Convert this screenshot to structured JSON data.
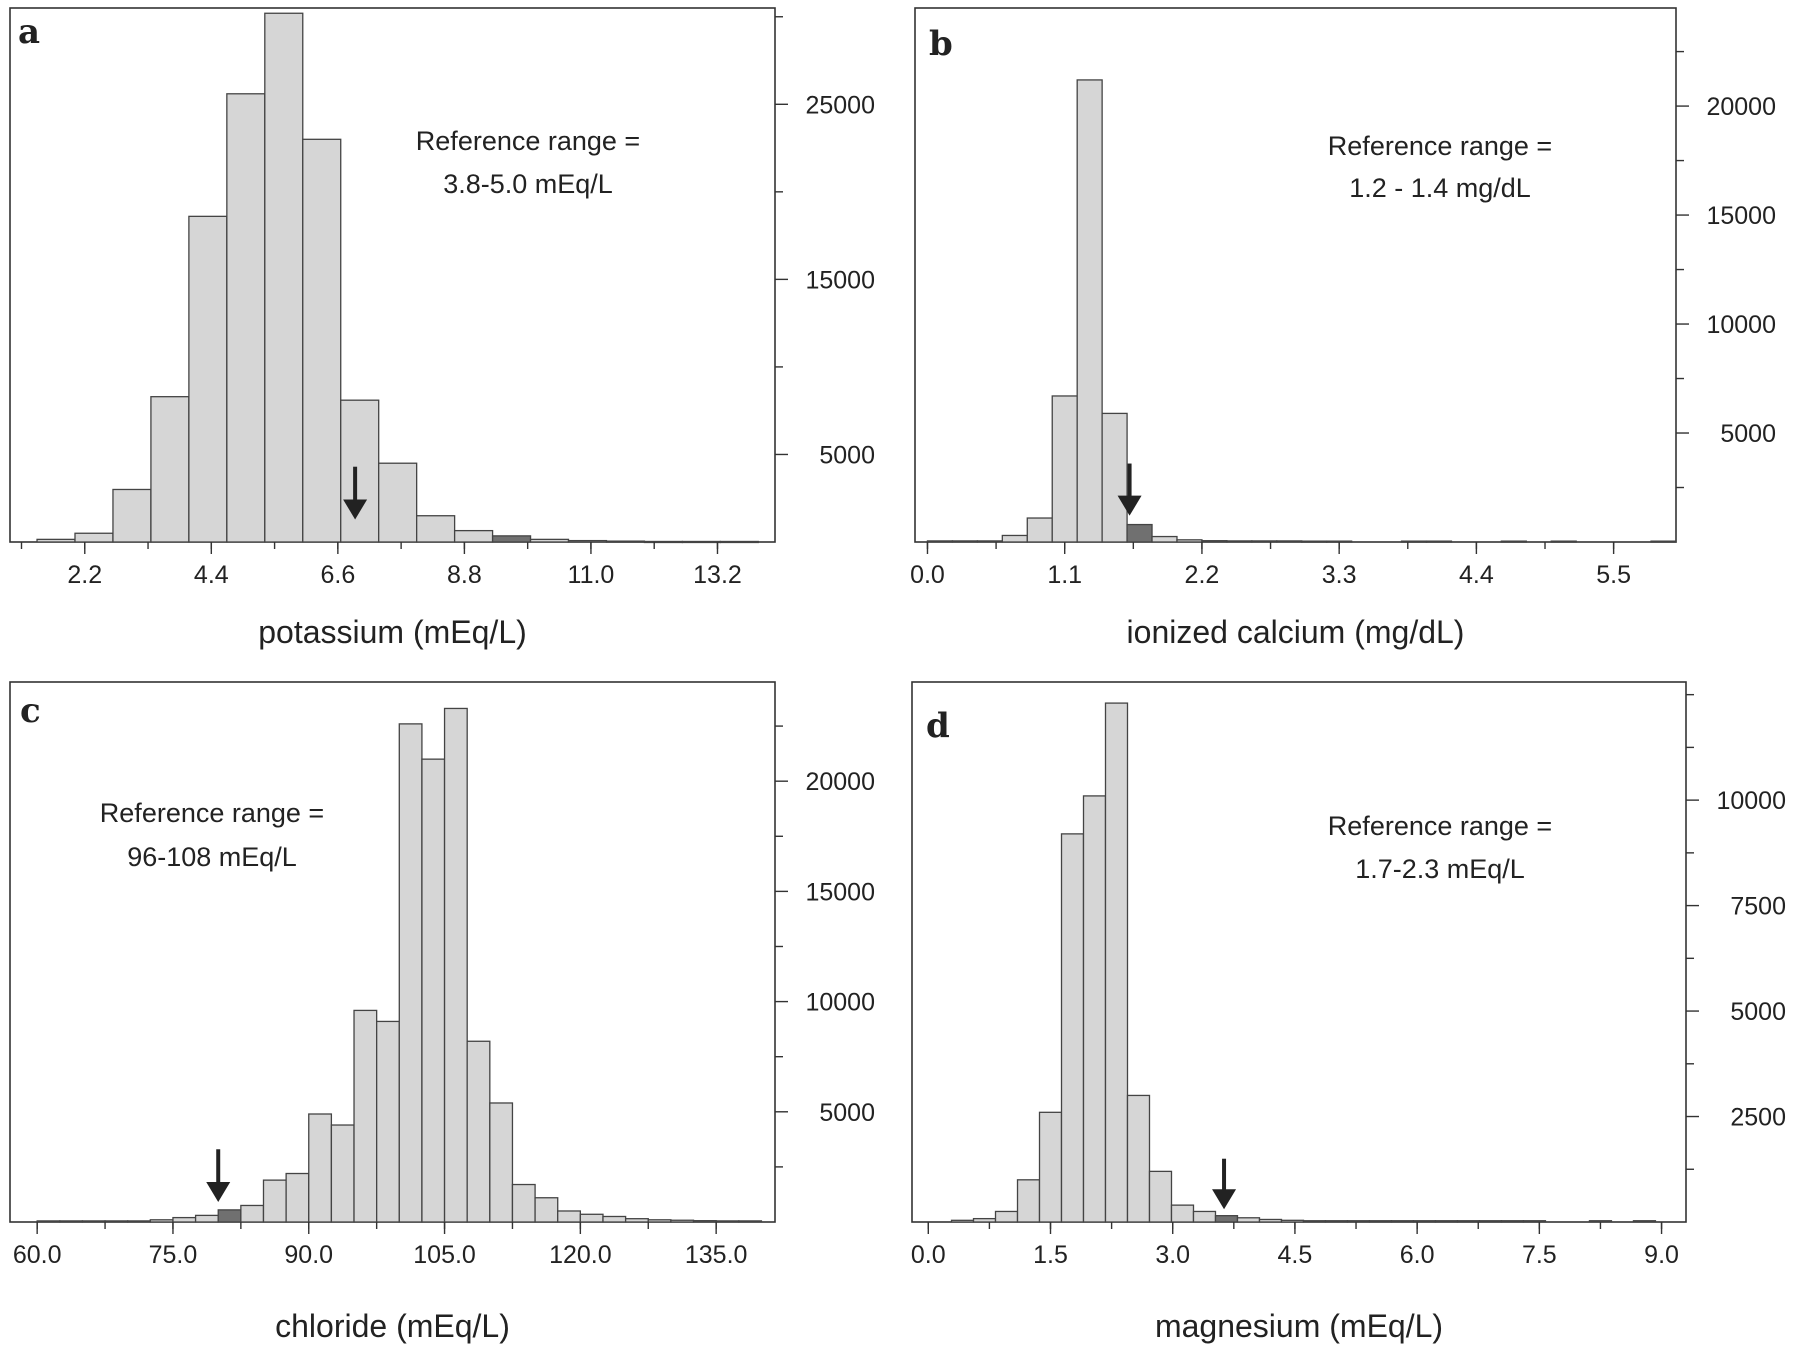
{
  "chart_data": [
    {
      "type": "bar",
      "panel": "a",
      "xlabel": "potassium (mEq/L)",
      "x_ticks": [
        "2.2",
        "4.4",
        "6.6",
        "8.8",
        "11.0",
        "13.2"
      ],
      "y_ticks": [
        "5000",
        "15000",
        "25000"
      ],
      "annotation": [
        "Reference range =",
        "3.8-5.0 mEq/L"
      ],
      "xlim": [
        0.9,
        14.2
      ],
      "ylim": [
        0,
        30500
      ],
      "bin_width": 0.66,
      "bins": [
        {
          "x": 1.7,
          "value": 150
        },
        {
          "x": 2.36,
          "value": 500
        },
        {
          "x": 3.02,
          "value": 3000
        },
        {
          "x": 3.68,
          "value": 8300
        },
        {
          "x": 4.34,
          "value": 18600
        },
        {
          "x": 5.0,
          "value": 25600
        },
        {
          "x": 5.66,
          "value": 30200
        },
        {
          "x": 6.32,
          "value": 23000
        },
        {
          "x": 6.98,
          "value": 8100
        },
        {
          "x": 7.64,
          "value": 4500
        },
        {
          "x": 8.3,
          "value": 1500
        },
        {
          "x": 8.96,
          "value": 650
        },
        {
          "x": 9.62,
          "value": 350,
          "highlight": true
        },
        {
          "x": 10.28,
          "value": 150
        },
        {
          "x": 10.94,
          "value": 80
        },
        {
          "x": 11.6,
          "value": 50
        },
        {
          "x": 12.26,
          "value": 30
        },
        {
          "x": 12.92,
          "value": 30
        },
        {
          "x": 13.58,
          "value": 30
        }
      ],
      "arrow_x": 6.9,
      "arrow_y_top": 4300,
      "arrow_y_bottom": 1400
    },
    {
      "type": "bar",
      "panel": "b",
      "xlabel": "ionized calcium (mg/dL)",
      "x_ticks": [
        "0.0",
        "1.1",
        "2.2",
        "3.3",
        "4.4",
        "5.5"
      ],
      "y_ticks": [
        "5000",
        "10000",
        "15000",
        "20000"
      ],
      "annotation": [
        "Reference range =",
        "1.2 - 1.4 mg/dL"
      ],
      "xlim": [
        -0.1,
        6.0
      ],
      "ylim": [
        0,
        24500
      ],
      "bin_width": 0.2,
      "bins": [
        {
          "x": 0.1,
          "value": 50
        },
        {
          "x": 0.3,
          "value": 50
        },
        {
          "x": 0.5,
          "value": 50
        },
        {
          "x": 0.7,
          "value": 300
        },
        {
          "x": 0.9,
          "value": 1100
        },
        {
          "x": 1.1,
          "value": 6700
        },
        {
          "x": 1.3,
          "value": 21200
        },
        {
          "x": 1.5,
          "value": 5900
        },
        {
          "x": 1.7,
          "value": 800,
          "highlight": true
        },
        {
          "x": 1.9,
          "value": 250
        },
        {
          "x": 2.1,
          "value": 100
        },
        {
          "x": 2.3,
          "value": 60
        },
        {
          "x": 2.5,
          "value": 50
        },
        {
          "x": 2.7,
          "value": 50
        },
        {
          "x": 2.9,
          "value": 50
        },
        {
          "x": 3.1,
          "value": 40
        },
        {
          "x": 3.3,
          "value": 40
        },
        {
          "x": 3.9,
          "value": 40
        },
        {
          "x": 4.1,
          "value": 40
        },
        {
          "x": 4.7,
          "value": 40
        },
        {
          "x": 5.1,
          "value": 40
        },
        {
          "x": 5.9,
          "value": 40
        }
      ],
      "arrow_x": 1.62,
      "arrow_y_top": 3600,
      "arrow_y_bottom": 1300
    },
    {
      "type": "bar",
      "panel": "c",
      "xlabel": "chloride (mEq/L)",
      "x_ticks": [
        "60.0",
        "75.0",
        "90.0",
        "105.0",
        "120.0",
        "135.0"
      ],
      "y_ticks": [
        "5000",
        "10000",
        "15000",
        "20000"
      ],
      "annotation": [
        "Reference range =",
        "96-108 mEq/L"
      ],
      "xlim": [
        57.0,
        141.5
      ],
      "ylim": [
        0,
        24500
      ],
      "bin_width": 2.5,
      "bins": [
        {
          "x": 61.25,
          "value": 50
        },
        {
          "x": 63.75,
          "value": 50
        },
        {
          "x": 66.25,
          "value": 50
        },
        {
          "x": 68.75,
          "value": 50
        },
        {
          "x": 71.25,
          "value": 50
        },
        {
          "x": 73.75,
          "value": 100
        },
        {
          "x": 76.25,
          "value": 200
        },
        {
          "x": 78.75,
          "value": 300
        },
        {
          "x": 81.25,
          "value": 550,
          "highlight": true
        },
        {
          "x": 83.75,
          "value": 750
        },
        {
          "x": 86.25,
          "value": 1900
        },
        {
          "x": 88.75,
          "value": 2200
        },
        {
          "x": 91.25,
          "value": 4900
        },
        {
          "x": 93.75,
          "value": 4400
        },
        {
          "x": 96.25,
          "value": 9600
        },
        {
          "x": 98.75,
          "value": 9100
        },
        {
          "x": 101.25,
          "value": 22600
        },
        {
          "x": 103.75,
          "value": 21000
        },
        {
          "x": 106.25,
          "value": 23300
        },
        {
          "x": 108.75,
          "value": 8200
        },
        {
          "x": 111.25,
          "value": 5400
        },
        {
          "x": 113.75,
          "value": 1700
        },
        {
          "x": 116.25,
          "value": 1100
        },
        {
          "x": 118.75,
          "value": 500
        },
        {
          "x": 121.25,
          "value": 350
        },
        {
          "x": 123.75,
          "value": 250
        },
        {
          "x": 126.25,
          "value": 150
        },
        {
          "x": 128.75,
          "value": 100
        },
        {
          "x": 131.25,
          "value": 80
        },
        {
          "x": 133.75,
          "value": 60
        },
        {
          "x": 136.25,
          "value": 50
        },
        {
          "x": 138.75,
          "value": 50
        }
      ],
      "arrow_x": 80.0,
      "arrow_y_top": 3300,
      "arrow_y_bottom": 1000
    },
    {
      "type": "bar",
      "panel": "d",
      "xlabel": "magnesium (mEq/L)",
      "x_ticks": [
        "0.0",
        "1.5",
        "3.0",
        "4.5",
        "6.0",
        "7.5",
        "9.0"
      ],
      "y_ticks": [
        "2500",
        "5000",
        "7500",
        "10000"
      ],
      "annotation": [
        "Reference range =",
        "1.7-2.3 mEq/L"
      ],
      "xlim": [
        -0.2,
        9.3
      ],
      "ylim": [
        0,
        12800
      ],
      "bin_width": 0.27,
      "bins": [
        {
          "x": 0.42,
          "value": 40
        },
        {
          "x": 0.69,
          "value": 80
        },
        {
          "x": 0.96,
          "value": 250
        },
        {
          "x": 1.23,
          "value": 1000
        },
        {
          "x": 1.5,
          "value": 2600
        },
        {
          "x": 1.77,
          "value": 9200
        },
        {
          "x": 2.04,
          "value": 10100
        },
        {
          "x": 2.31,
          "value": 12300
        },
        {
          "x": 2.58,
          "value": 3000
        },
        {
          "x": 2.85,
          "value": 1200
        },
        {
          "x": 3.12,
          "value": 400
        },
        {
          "x": 3.39,
          "value": 250
        },
        {
          "x": 3.66,
          "value": 150,
          "highlight": true
        },
        {
          "x": 3.93,
          "value": 100
        },
        {
          "x": 4.2,
          "value": 60
        },
        {
          "x": 4.47,
          "value": 40
        },
        {
          "x": 4.74,
          "value": 30
        },
        {
          "x": 5.01,
          "value": 30
        },
        {
          "x": 5.28,
          "value": 30
        },
        {
          "x": 5.55,
          "value": 30
        },
        {
          "x": 5.82,
          "value": 30
        },
        {
          "x": 6.09,
          "value": 30
        },
        {
          "x": 6.36,
          "value": 30
        },
        {
          "x": 6.63,
          "value": 30
        },
        {
          "x": 6.9,
          "value": 30
        },
        {
          "x": 7.17,
          "value": 30
        },
        {
          "x": 7.44,
          "value": 30
        },
        {
          "x": 8.25,
          "value": 30
        },
        {
          "x": 8.79,
          "value": 30
        }
      ],
      "arrow_x": 3.63,
      "arrow_y_top": 1500,
      "arrow_y_bottom": 350
    }
  ],
  "colors": {
    "bar_fill": "#d6d6d6",
    "bar_highlight": "#707070",
    "bar_stroke": "#444444",
    "axis": "#333333",
    "text": "#222222",
    "arrow": "#222222"
  }
}
